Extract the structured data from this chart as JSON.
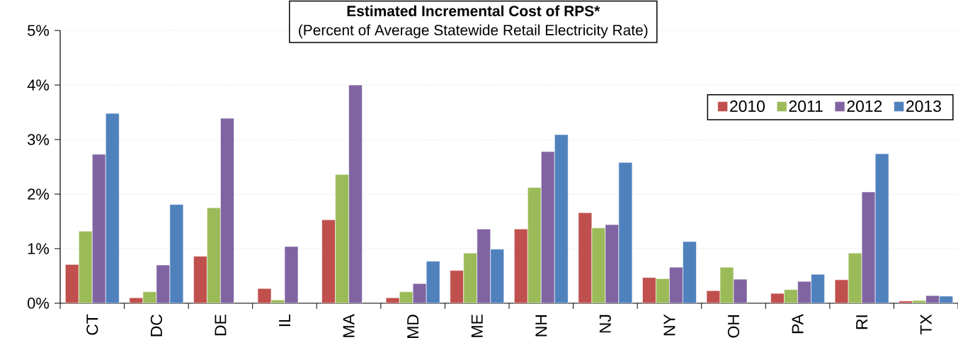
{
  "chart_data": {
    "type": "bar",
    "title": "Estimated Incremental Cost of RPS*",
    "subtitle": "(Percent of Average Statewide Retail Electricity Rate)",
    "categories": [
      "CT",
      "DC",
      "DE",
      "IL",
      "MA",
      "MD",
      "ME",
      "NH",
      "NJ",
      "NY",
      "OH",
      "PA",
      "RI",
      "TX"
    ],
    "series": [
      {
        "name": "2010",
        "color": "#c0504d",
        "values": [
          0.71,
          0.1,
          0.86,
          0.27,
          1.53,
          0.1,
          0.6,
          1.36,
          1.66,
          0.47,
          0.23,
          0.18,
          0.43,
          0.04
        ]
      },
      {
        "name": "2011",
        "color": "#9bbb59",
        "values": [
          1.32,
          0.21,
          1.75,
          0.06,
          2.36,
          0.21,
          0.92,
          2.12,
          1.38,
          0.45,
          0.66,
          0.25,
          0.92,
          0.05
        ]
      },
      {
        "name": "2012",
        "color": "#8064a2",
        "values": [
          2.73,
          0.7,
          3.39,
          1.04,
          4.0,
          0.36,
          1.36,
          2.78,
          1.44,
          0.66,
          0.44,
          0.4,
          2.04,
          0.14
        ]
      },
      {
        "name": "2013",
        "color": "#4f81bd",
        "values": [
          3.48,
          1.81,
          null,
          null,
          null,
          0.77,
          0.99,
          3.09,
          2.58,
          1.13,
          null,
          0.53,
          2.74,
          0.13
        ]
      }
    ],
    "ylim": [
      0,
      5
    ],
    "yticks": [
      {
        "value": 0,
        "label": "0%"
      },
      {
        "value": 1,
        "label": "1%"
      },
      {
        "value": 2,
        "label": "2%"
      },
      {
        "value": 3,
        "label": "3%"
      },
      {
        "value": 4,
        "label": "4%"
      },
      {
        "value": 5,
        "label": "5%"
      }
    ],
    "grid": "y",
    "legend": "top right"
  }
}
